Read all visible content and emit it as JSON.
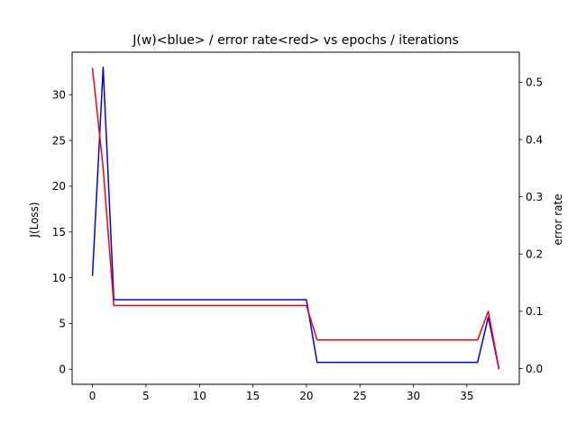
{
  "chart_data": {
    "type": "line",
    "title": "J(w)<blue> / error rate<red> vs epochs / iterations",
    "xlabel": "",
    "ylabel": "J(Loss)",
    "y2label": "error rate",
    "xlim": [
      -1.9,
      39.9
    ],
    "ylim": [
      -1.65,
      34.65
    ],
    "y2lim": [
      -0.0275,
      0.5525
    ],
    "xticks": [
      0,
      5,
      10,
      15,
      20,
      25,
      30,
      35
    ],
    "yticks": [
      0,
      5,
      10,
      15,
      20,
      25,
      30
    ],
    "y2ticks": [
      0.0,
      0.1,
      0.2,
      0.3,
      0.4,
      0.5
    ],
    "y2tick_labels": [
      "0.0",
      "0.1",
      "0.2",
      "0.3",
      "0.4",
      "0.5"
    ],
    "grid": false,
    "series": [
      {
        "axis": "left",
        "color": "#0000ff",
        "points": [
          [
            0,
            10.2
          ],
          [
            1,
            33.0
          ],
          [
            2,
            7.6
          ],
          [
            20,
            7.6
          ],
          [
            21,
            0.75
          ],
          [
            36,
            0.75
          ],
          [
            37,
            5.7
          ],
          [
            38,
            0.0
          ]
        ]
      },
      {
        "axis": "right",
        "color": "#ff0000",
        "points": [
          [
            0,
            0.525
          ],
          [
            1,
            0.35
          ],
          [
            2,
            0.11
          ],
          [
            20,
            0.11
          ],
          [
            21,
            0.05
          ],
          [
            36,
            0.05
          ],
          [
            37,
            0.1
          ],
          [
            38,
            0.0
          ]
        ]
      }
    ]
  }
}
